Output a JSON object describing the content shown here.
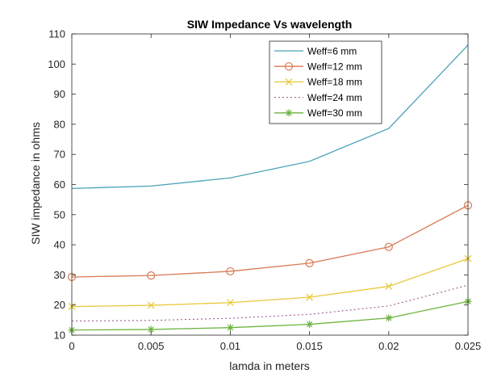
{
  "chart_data": {
    "type": "line",
    "title": "SIW Impedance Vs wavelength",
    "xlabel": "lamda in meters",
    "ylabel": "SIW impedance in ohms",
    "xlim": [
      0,
      0.025
    ],
    "ylim": [
      10,
      110
    ],
    "xticks": [
      "0",
      "0.005",
      "0.01",
      "0.015",
      "0.02",
      "0.025"
    ],
    "yticks": [
      "10",
      "20",
      "30",
      "40",
      "50",
      "60",
      "70",
      "80",
      "90",
      "100",
      "110"
    ],
    "x": [
      0,
      0.005,
      0.01,
      0.015,
      0.02,
      0.025
    ],
    "legend_position": "top-right",
    "grid": false,
    "series": [
      {
        "name": "Weff=6 mm",
        "values": [
          58.7,
          59.5,
          62.2,
          67.7,
          78.6,
          106.3
        ],
        "color": "#4aa3b8",
        "marker": "none",
        "dash": ""
      },
      {
        "name": "Weff=12 mm",
        "values": [
          29.3,
          29.8,
          31.2,
          33.9,
          39.3,
          53.1
        ],
        "color": "#d97a55",
        "marker": "circle",
        "dash": ""
      },
      {
        "name": "Weff=18 mm",
        "values": [
          19.5,
          19.9,
          20.8,
          22.6,
          26.2,
          35.4
        ],
        "color": "#e8c93a",
        "marker": "x",
        "dash": ""
      },
      {
        "name": "Weff=24 mm",
        "values": [
          14.7,
          14.9,
          15.6,
          16.9,
          19.7,
          26.6
        ],
        "color": "#9a4a8a",
        "marker": "none",
        "dash": "2,3"
      },
      {
        "name": "Weff=30 mm",
        "values": [
          11.7,
          11.9,
          12.5,
          13.6,
          15.7,
          21.2
        ],
        "color": "#6db33f",
        "marker": "star",
        "dash": ""
      }
    ]
  }
}
